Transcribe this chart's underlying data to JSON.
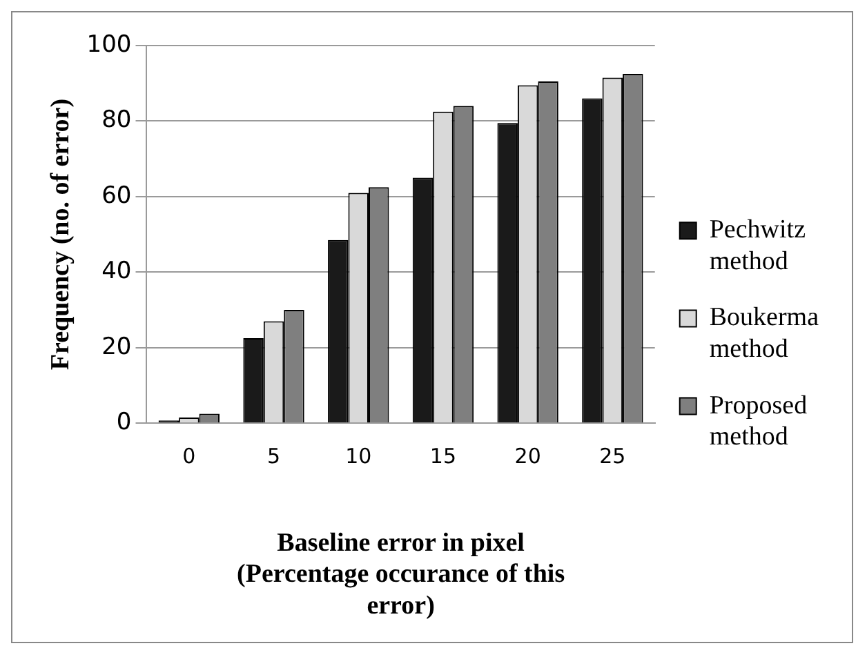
{
  "chart_data": {
    "type": "bar",
    "xlabel": "Baseline error in pixel (Percentage occurance of this error)",
    "ylabel": "Frequency (no. of error)",
    "categories": [
      "0",
      "5",
      "10",
      "15",
      "20",
      "25"
    ],
    "series": [
      {
        "name": "Pechwitz method",
        "color": "#1a1a1a",
        "values": [
          0.7,
          22.5,
          48.5,
          65,
          79.5,
          86
        ]
      },
      {
        "name": "Boukerma method",
        "color": "#d9d9d9",
        "values": [
          1.5,
          27,
          61,
          82.5,
          89.5,
          91.5
        ]
      },
      {
        "name": "Proposed method",
        "color": "#7f7f7f",
        "values": [
          2.5,
          30,
          62.5,
          84,
          90.5,
          92.5
        ]
      }
    ],
    "ylim": [
      0,
      100
    ],
    "yticks": [
      0,
      20,
      40,
      60,
      80,
      100
    ],
    "grid": "y",
    "legend": "right"
  }
}
